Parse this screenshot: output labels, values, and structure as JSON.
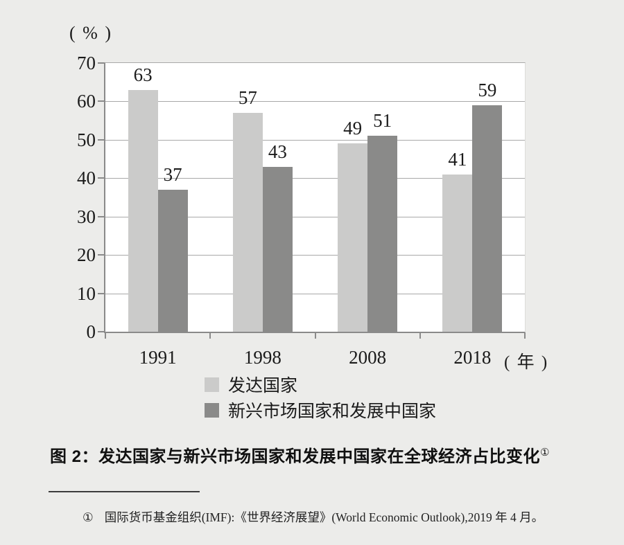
{
  "chart": {
    "y_unit_label": "( % )",
    "x_unit_label": "( 年 )"
  },
  "chart_data": {
    "type": "bar",
    "title": "发达国家与新兴市场国家和发展中国家在全球经济占比变化",
    "categories": [
      "1991",
      "1998",
      "2008",
      "2018"
    ],
    "series": [
      {
        "name": "发达国家",
        "values": [
          63,
          57,
          49,
          41
        ],
        "color": "#cbcbca"
      },
      {
        "name": "新兴市场国家和发展中国家",
        "values": [
          37,
          43,
          51,
          59
        ],
        "color": "#8a8a89"
      }
    ],
    "ylabel": "(%)",
    "xlabel": "(年)",
    "ylim": [
      0,
      70
    ],
    "yticks": [
      0,
      10,
      20,
      30,
      40,
      50,
      60,
      70
    ],
    "grid": true,
    "legend_position": "bottom",
    "value_labels": true
  },
  "caption": {
    "text": "图 2：发达国家与新兴市场国家和发展中国家在全球经济占比变化",
    "marker": "①"
  },
  "footnote": {
    "marker": "①",
    "text": "国际货币基金组织(IMF):《世界经济展望》(World Economic Outlook),2019 年 4 月。"
  }
}
